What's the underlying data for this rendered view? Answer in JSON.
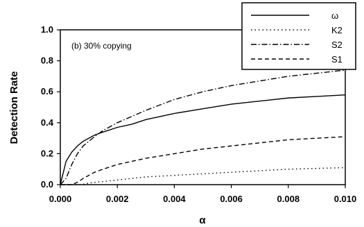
{
  "chart_data": {
    "type": "line",
    "title": "",
    "annotation": "(b) 30% copying",
    "xlabel": "α",
    "ylabel": "Detection Rate",
    "xlim": [
      0,
      0.01
    ],
    "ylim": [
      0,
      1.0
    ],
    "xticks": [
      "0.000",
      "0.002",
      "0.004",
      "0.006",
      "0.008",
      "0.010"
    ],
    "yticks": [
      "0.0",
      "0.2",
      "0.4",
      "0.6",
      "0.8",
      "1.0"
    ],
    "grid": false,
    "legend_position": "top-right",
    "x": [
      0.0,
      0.0002,
      0.0004,
      0.0006,
      0.0008,
      0.001,
      0.0012,
      0.0015,
      0.002,
      0.0025,
      0.003,
      0.004,
      0.005,
      0.006,
      0.007,
      0.008,
      0.009,
      0.01
    ],
    "series": [
      {
        "name": "ω",
        "style": "solid",
        "values": [
          0.0,
          0.15,
          0.21,
          0.25,
          0.28,
          0.3,
          0.32,
          0.34,
          0.37,
          0.39,
          0.42,
          0.46,
          0.49,
          0.52,
          0.54,
          0.56,
          0.57,
          0.58
        ]
      },
      {
        "name": "K2",
        "style": "dotted",
        "values": [
          0.0,
          0.0,
          0.0,
          0.0,
          0.003,
          0.01,
          0.015,
          0.02,
          0.03,
          0.04,
          0.05,
          0.06,
          0.07,
          0.08,
          0.09,
          0.1,
          0.105,
          0.11
        ]
      },
      {
        "name": "S2",
        "style": "dashdot",
        "values": [
          0.0,
          0.04,
          0.13,
          0.2,
          0.25,
          0.28,
          0.31,
          0.35,
          0.4,
          0.44,
          0.48,
          0.55,
          0.6,
          0.64,
          0.67,
          0.7,
          0.72,
          0.74
        ]
      },
      {
        "name": "S1",
        "style": "dashed",
        "values": [
          0.0,
          0.0,
          0.0,
          0.015,
          0.04,
          0.06,
          0.08,
          0.1,
          0.13,
          0.15,
          0.17,
          0.2,
          0.23,
          0.25,
          0.27,
          0.29,
          0.3,
          0.31
        ]
      }
    ]
  }
}
